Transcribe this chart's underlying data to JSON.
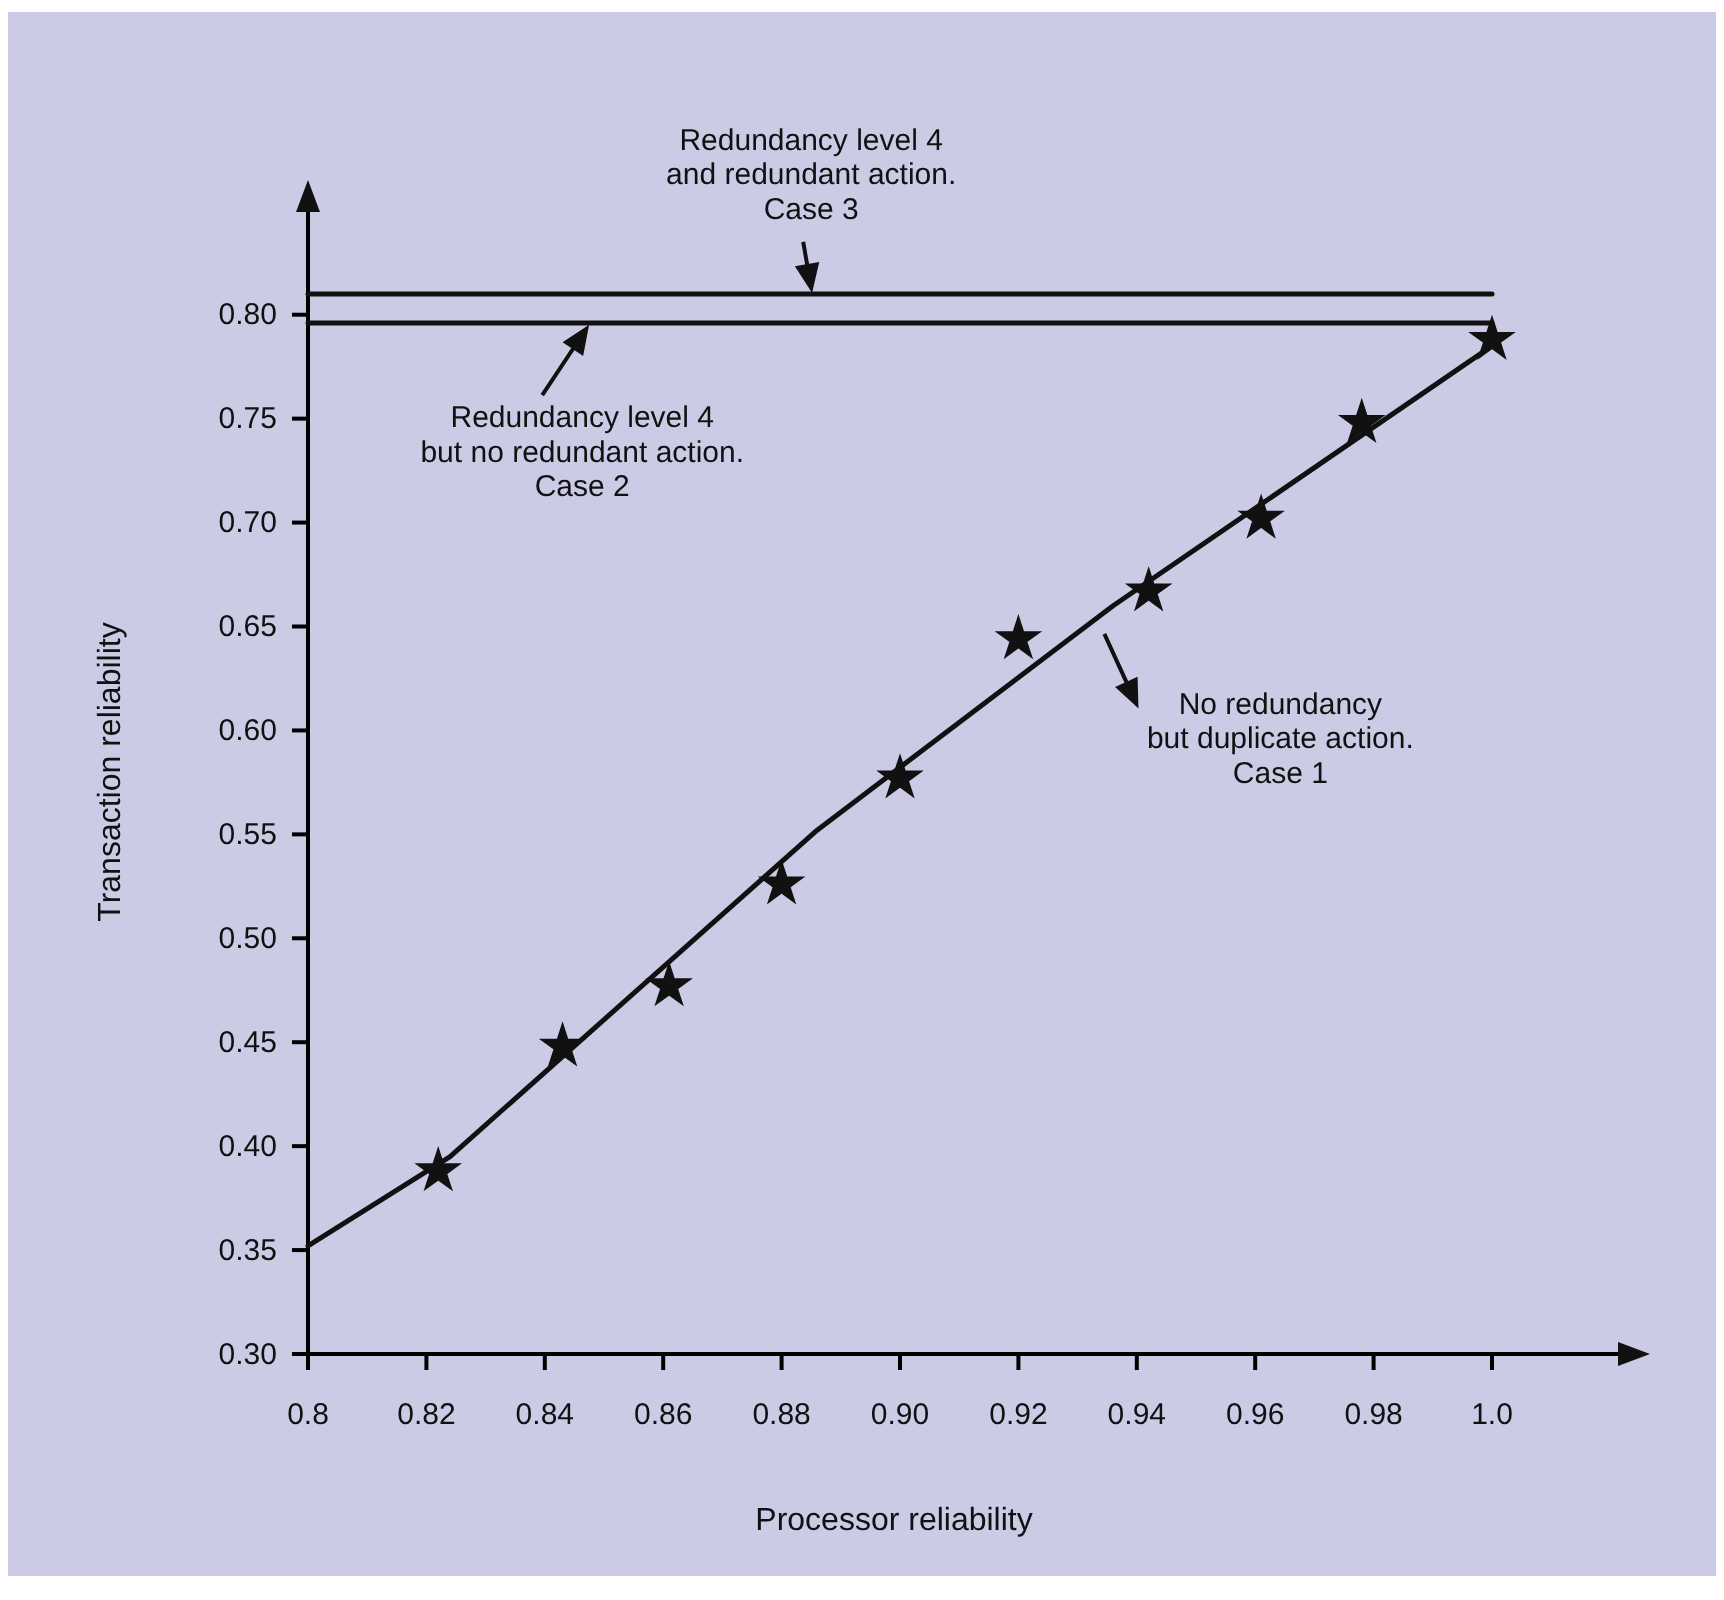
{
  "chart_data": {
    "type": "line",
    "xlabel": "Processor reliability",
    "ylabel": "Transaction reliability",
    "xlim": [
      0.8,
      1.025
    ],
    "ylim": [
      0.3,
      0.86
    ],
    "xticks": [
      0.8,
      0.82,
      0.84,
      0.86,
      0.88,
      {
        "value": 0.9,
        "label": "0.90"
      },
      0.92,
      0.94,
      0.96,
      0.98,
      {
        "value": 1.0,
        "label": "1.0"
      }
    ],
    "yticks": [
      {
        "value": 0.3,
        "label": "0.30"
      },
      0.35,
      {
        "value": 0.4,
        "label": "0.40"
      },
      0.45,
      {
        "value": 0.5,
        "label": "0.50"
      },
      0.55,
      {
        "value": 0.6,
        "label": "0.60"
      },
      0.65,
      {
        "value": 0.7,
        "label": "0.70"
      },
      0.75,
      {
        "value": 0.8,
        "label": "0.80"
      }
    ],
    "grid": false,
    "line_style": "solid",
    "series": [
      {
        "color": "#111111",
        "marker": "none",
        "x": [
          0.8,
          0.824,
          0.886,
          0.936,
          1.0
        ],
        "values": [
          0.352,
          0.395,
          0.552,
          0.66,
          0.785
        ]
      },
      {
        "type": "scatter",
        "color": "#111111",
        "marker": "star",
        "x": [
          0.822,
          0.843,
          0.861,
          0.88,
          0.9,
          0.92,
          0.942,
          0.961,
          0.978,
          1.0
        ],
        "values": [
          0.388,
          0.448,
          0.477,
          0.526,
          0.577,
          0.644,
          0.667,
          0.702,
          0.748,
          0.788
        ]
      },
      {
        "color": "#111111",
        "marker": "none",
        "x": [
          0.8,
          1.0
        ],
        "values": [
          0.796,
          0.796
        ]
      },
      {
        "color": "#111111",
        "marker": "none",
        "x": [
          0.8,
          1.0
        ],
        "values": [
          0.81,
          0.81
        ]
      }
    ],
    "annotations": [
      {
        "text": "Redundancy level 4\nand redundant action.\nCase 3",
        "x": 0.885,
        "y": 0.81
      },
      {
        "text": "Redundancy level 4\nbut no redundant action.\nCase 2",
        "x": 0.847,
        "y": 0.796
      },
      "No redundancy\nbut duplicate action.\nCase 1"
    ]
  }
}
